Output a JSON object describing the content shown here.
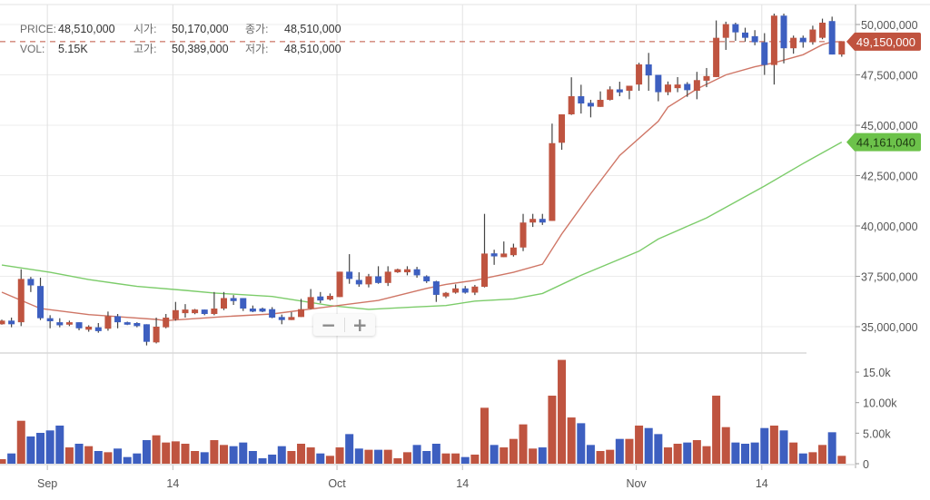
{
  "header": {
    "price_label": "PRICE:",
    "price_value": "48,510,000",
    "open_label": "시가:",
    "open_value": "50,170,000",
    "close_label": "종가:",
    "close_value": "48,510,000",
    "vol_label": "VOL:",
    "vol_value": "5.15K",
    "high_label": "고가:",
    "high_value": "50,389,000",
    "low_label": "저가:",
    "low_value": "48,510,000"
  },
  "price_tag": {
    "text": "49,150,000",
    "value": 49150000,
    "color": "#c0533f"
  },
  "ma_tag": {
    "text": "44,161,040",
    "value": 44161040,
    "color": "#6cc24a"
  },
  "zoom_controls": {
    "minus": "−",
    "plus": "+"
  },
  "colors": {
    "up": "#bf5440",
    "down": "#3d5fc0",
    "ma_short": "#cf7666",
    "ma_long": "#7ccc6a",
    "grid": "#ececec"
  },
  "chart_data": {
    "type": "candlestick",
    "price_axis": {
      "ticks": [
        35000000,
        37500000,
        40000000,
        42500000,
        45000000,
        47500000,
        50000000
      ],
      "tick_labels": [
        "35,000,000",
        "37,500,000",
        "40,000,000",
        "42,500,000",
        "45,000,000",
        "47,500,000",
        "50,000,000"
      ]
    },
    "volume_axis": {
      "ticks": [
        0,
        5000,
        10000,
        15000
      ],
      "tick_labels": [
        "0",
        "5.00k",
        "10.00k",
        "15.0k"
      ]
    },
    "x_ticks": [
      {
        "label": "Sep",
        "date": "Sep 1"
      },
      {
        "label": "14",
        "date": "Sep 14"
      },
      {
        "label": "Oct",
        "date": "Oct 1"
      },
      {
        "label": "14",
        "date": "Oct 14"
      },
      {
        "label": "Nov",
        "date": "Nov 1"
      },
      {
        "label": "14",
        "date": "Nov 14"
      }
    ],
    "grid": true,
    "columns": [
      "date",
      "open",
      "high",
      "low",
      "close",
      "volume"
    ],
    "candles": [
      [
        "Aug 27",
        35120000,
        35350000,
        35100000,
        35300000,
        740
      ],
      [
        "Aug 28",
        35300000,
        35450000,
        34970000,
        35120000,
        1680
      ],
      [
        "Aug 29",
        35220000,
        37850000,
        35030000,
        37370000,
        7030
      ],
      [
        "Aug 30",
        37370000,
        37470000,
        36720000,
        37050000,
        4460
      ],
      [
        "Aug 31",
        37020000,
        37430000,
        35330000,
        35420000,
        5050
      ],
      [
        "Sep 1",
        35420000,
        35570000,
        34920000,
        35270000,
        5450
      ],
      [
        "Sep 2",
        35220000,
        35420000,
        34970000,
        35070000,
        6240
      ],
      [
        "Sep 3",
        35100000,
        35300000,
        35030000,
        35220000,
        2670
      ],
      [
        "Sep 4",
        35220000,
        35220000,
        34820000,
        34920000,
        3270
      ],
      [
        "Sep 5",
        34850000,
        35070000,
        34750000,
        35000000,
        2870
      ],
      [
        "Sep 6",
        34970000,
        35180000,
        34700000,
        34780000,
        2080
      ],
      [
        "Sep 7",
        34900000,
        35750000,
        34800000,
        35520000,
        1880
      ],
      [
        "Sep 8",
        35520000,
        35630000,
        34920000,
        35220000,
        2480
      ],
      [
        "Sep 9",
        35220000,
        35250000,
        35080000,
        35100000,
        1090
      ],
      [
        "Sep 10",
        35180000,
        35220000,
        34970000,
        35030000,
        1680
      ],
      [
        "Sep 11",
        35120000,
        35120000,
        34070000,
        34250000,
        3860
      ],
      [
        "Sep 12",
        34220000,
        35450000,
        34170000,
        35000000,
        4650
      ],
      [
        "Sep 13",
        34970000,
        35630000,
        34920000,
        35450000,
        3470
      ],
      [
        "Sep 14",
        35370000,
        36230000,
        35300000,
        35820000,
        3660
      ],
      [
        "Sep 15",
        35670000,
        36120000,
        35450000,
        35850000,
        3270
      ],
      [
        "Sep 16",
        35670000,
        35880000,
        35620000,
        35850000,
        2080
      ],
      [
        "Sep 17",
        35850000,
        35850000,
        35570000,
        35630000,
        1880
      ],
      [
        "Sep 18",
        35630000,
        36720000,
        35570000,
        35900000,
        3860
      ],
      [
        "Sep 19",
        35900000,
        36720000,
        35820000,
        36420000,
        3070
      ],
      [
        "Sep 20",
        36420000,
        36570000,
        36080000,
        36270000,
        2870
      ],
      [
        "Sep 21",
        36420000,
        36420000,
        35780000,
        35900000,
        3470
      ],
      [
        "Sep 22",
        35900000,
        36050000,
        35720000,
        35750000,
        2080
      ],
      [
        "Sep 23",
        35900000,
        35950000,
        35720000,
        35750000,
        890
      ],
      [
        "Sep 24",
        35870000,
        35970000,
        35420000,
        35450000,
        1490
      ],
      [
        "Sep 25",
        35480000,
        35600000,
        35120000,
        35330000,
        2870
      ],
      [
        "Sep 26",
        35330000,
        35720000,
        35330000,
        35480000,
        2080
      ],
      [
        "Sep 27",
        35480000,
        36380000,
        35480000,
        35870000,
        3270
      ],
      [
        "Sep 28",
        35900000,
        36870000,
        35870000,
        36470000,
        2670
      ],
      [
        "Sep 29",
        36500000,
        36720000,
        36170000,
        36300000,
        1680
      ],
      [
        "Sep 30",
        36350000,
        36650000,
        36300000,
        36530000,
        1290
      ],
      [
        "Oct 1",
        36470000,
        37730000,
        36470000,
        37730000,
        2670
      ],
      [
        "Oct 2",
        37730000,
        38600000,
        37130000,
        37370000,
        4850
      ],
      [
        "Oct 3",
        37320000,
        37700000,
        36980000,
        37100000,
        2480
      ],
      [
        "Oct 4",
        37100000,
        37620000,
        36950000,
        37500000,
        2280
      ],
      [
        "Oct 5",
        37500000,
        38000000,
        37130000,
        37170000,
        2280
      ],
      [
        "Oct 6",
        37170000,
        38000000,
        37020000,
        37730000,
        2280
      ],
      [
        "Oct 7",
        37700000,
        37880000,
        37670000,
        37850000,
        890
      ],
      [
        "Oct 8",
        37700000,
        38000000,
        37550000,
        37850000,
        1880
      ],
      [
        "Oct 9",
        37850000,
        37970000,
        37430000,
        37550000,
        3070
      ],
      [
        "Oct 10",
        37500000,
        37550000,
        37170000,
        37250000,
        2080
      ],
      [
        "Oct 11",
        37250000,
        37280000,
        36230000,
        36580000,
        3270
      ],
      [
        "Oct 12",
        36500000,
        36720000,
        36420000,
        36680000,
        1680
      ],
      [
        "Oct 13",
        36690000,
        37100000,
        36640000,
        36900000,
        1680
      ],
      [
        "Oct 14",
        36900000,
        37020000,
        36640000,
        36690000,
        1090
      ],
      [
        "Oct 15",
        36690000,
        37070000,
        36570000,
        36990000,
        1490
      ],
      [
        "Oct 16",
        36980000,
        40600000,
        36950000,
        38630000,
        9160
      ],
      [
        "Oct 17",
        38640000,
        38820000,
        38070000,
        38490000,
        3070
      ],
      [
        "Oct 18",
        38450000,
        39230000,
        38450000,
        38630000,
        2670
      ],
      [
        "Oct 19",
        38550000,
        39120000,
        38480000,
        38930000,
        4060
      ],
      [
        "Oct 20",
        38930000,
        40600000,
        38750000,
        40170000,
        6440
      ],
      [
        "Oct 21",
        40170000,
        40600000,
        39950000,
        40350000,
        2480
      ],
      [
        "Oct 22",
        40350000,
        40600000,
        40050000,
        40170000,
        2670
      ],
      [
        "Oct 23",
        40250000,
        45080000,
        40250000,
        44110000,
        11140
      ],
      [
        "Oct 24",
        44130000,
        45540000,
        43780000,
        45540000,
        17000
      ],
      [
        "Oct 25",
        45540000,
        47380000,
        45510000,
        46440000,
        7570
      ],
      [
        "Oct 26",
        46440000,
        47010000,
        45580000,
        46080000,
        6630
      ],
      [
        "Oct 27",
        46110000,
        46260000,
        45390000,
        45930000,
        3070
      ],
      [
        "Oct 28",
        45910000,
        46680000,
        45910000,
        46260000,
        2080
      ],
      [
        "Oct 29",
        46260000,
        46930000,
        46230000,
        46780000,
        2280
      ],
      [
        "Oct 30",
        46780000,
        47160000,
        46440000,
        46630000,
        4060
      ],
      [
        "Oct 31",
        46710000,
        46960000,
        46290000,
        46960000,
        4060
      ],
      [
        "Nov 1",
        47020000,
        48100000,
        46710000,
        48020000,
        6240
      ],
      [
        "Nov 2",
        48020000,
        48590000,
        46710000,
        47470000,
        5840
      ],
      [
        "Nov 3",
        47500000,
        47500000,
        46190000,
        46640000,
        4850
      ],
      [
        "Nov 4",
        46640000,
        47170000,
        46490000,
        47020000,
        2670
      ],
      [
        "Nov 5",
        46840000,
        47390000,
        46640000,
        47020000,
        3270
      ],
      [
        "Nov 6",
        47050000,
        47140000,
        46410000,
        46740000,
        3470
      ],
      [
        "Nov 7",
        46710000,
        47650000,
        46290000,
        47240000,
        3860
      ],
      [
        "Nov 8",
        47210000,
        47840000,
        46890000,
        47440000,
        2870
      ],
      [
        "Nov 9",
        47390000,
        50200000,
        47390000,
        49340000,
        11140
      ],
      [
        "Nov 10",
        49340000,
        50140000,
        48740000,
        50020000,
        5990
      ],
      [
        "Nov 11",
        50020000,
        50090000,
        49190000,
        49610000,
        3470
      ],
      [
        "Nov 12",
        49600000,
        49840000,
        49150000,
        49340000,
        3270
      ],
      [
        "Nov 13",
        49420000,
        49720000,
        48970000,
        49120000,
        3470
      ],
      [
        "Nov 14",
        49120000,
        49570000,
        47500000,
        47990000,
        5840
      ],
      [
        "Nov 15",
        47990000,
        50540000,
        47020000,
        50440000,
        6240
      ],
      [
        "Nov 16",
        50440000,
        50540000,
        48070000,
        48820000,
        5450
      ],
      [
        "Nov 17",
        48820000,
        49450000,
        48550000,
        49340000,
        3470
      ],
      [
        "Nov 18",
        49340000,
        49450000,
        48850000,
        49120000,
        1680
      ],
      [
        "Nov 19",
        49120000,
        49940000,
        49000000,
        49750000,
        1880
      ],
      [
        "Nov 20",
        49340000,
        50290000,
        49270000,
        50090000,
        3070
      ],
      [
        "Nov 21",
        50170000,
        50389000,
        48510000,
        48510000,
        5150
      ],
      [
        "Nov 22",
        48510000,
        49150000,
        48400000,
        49150000,
        1290
      ]
    ],
    "ma_short": [
      [
        "Aug 27",
        36710000
      ],
      [
        "Aug 31",
        35900000
      ],
      [
        "Sep 5",
        35600000
      ],
      [
        "Sep 12",
        35360000
      ],
      [
        "Sep 13",
        35300000
      ],
      [
        "Sep 19",
        35500000
      ],
      [
        "Sep 24",
        35630000
      ],
      [
        "Sep 30",
        36000000
      ],
      [
        "Oct 5",
        36300000
      ],
      [
        "Oct 10",
        36900000
      ],
      [
        "Oct 12",
        37100000
      ],
      [
        "Oct 15",
        37300000
      ],
      [
        "Oct 19",
        37700000
      ],
      [
        "Oct 22",
        38100000
      ],
      [
        "Oct 24",
        39600000
      ],
      [
        "Oct 27",
        41600000
      ],
      [
        "Oct 30",
        43500000
      ],
      [
        "Nov 3",
        45200000
      ],
      [
        "Nov 4",
        45900000
      ],
      [
        "Nov 6",
        46500000
      ],
      [
        "Nov 7",
        46800000
      ],
      [
        "Nov 10",
        47500000
      ],
      [
        "Nov 13",
        47900000
      ],
      [
        "Nov 15",
        48100000
      ],
      [
        "Nov 18",
        48500000
      ],
      [
        "Nov 20",
        49000000
      ],
      [
        "Nov 21",
        49140000
      ],
      [
        "Nov 22",
        49150000
      ]
    ],
    "ma_long": [
      [
        "Aug 27",
        38060000
      ],
      [
        "Sep 1",
        37700000
      ],
      [
        "Sep 5",
        37340000
      ],
      [
        "Sep 10",
        37000000
      ],
      [
        "Sep 15",
        36800000
      ],
      [
        "Sep 18",
        36670000
      ],
      [
        "Sep 24",
        36500000
      ],
      [
        "Sep 30",
        36050000
      ],
      [
        "Oct 4",
        35860000
      ],
      [
        "Oct 9",
        35980000
      ],
      [
        "Oct 12",
        36050000
      ],
      [
        "Oct 15",
        36270000
      ],
      [
        "Oct 19",
        36380000
      ],
      [
        "Oct 22",
        36650000
      ],
      [
        "Oct 26",
        37550000
      ],
      [
        "Nov 1",
        38750000
      ],
      [
        "Nov 3",
        39350000
      ],
      [
        "Nov 8",
        40400000
      ],
      [
        "Nov 14",
        41980000
      ],
      [
        "Nov 18",
        43100000
      ],
      [
        "Nov 22",
        44161040
      ]
    ]
  }
}
